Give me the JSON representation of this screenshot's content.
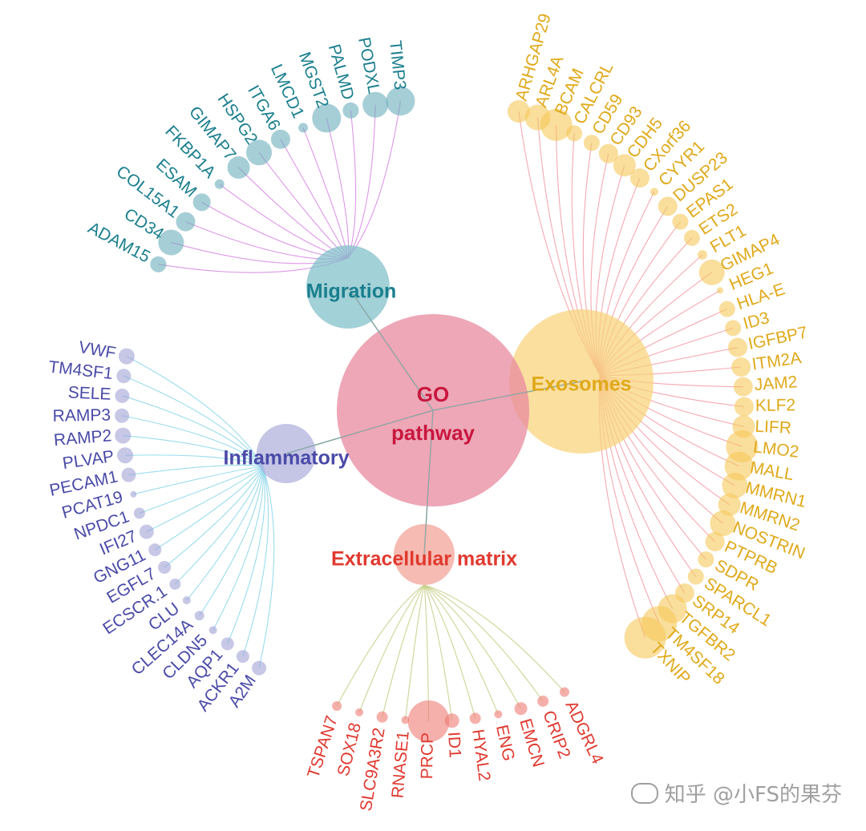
{
  "root": {
    "label_line1": "GO",
    "label_line2": "pathway",
    "color": "#e8899f",
    "text_color": "#c8173f"
  },
  "categories": [
    {
      "key": "migration",
      "label": "Migration",
      "color": "#7fbfc9",
      "text_color": "#1a7f8e",
      "leaf_color": "#6aaeba",
      "line_color": "#d98be6",
      "genes": [
        "ADAM15",
        "CD34",
        "COL15A1",
        "ESAM",
        "FKBP1A",
        "GIMAP7",
        "HSPG2",
        "ITGA6",
        "LMCD1",
        "MGST2",
        "PALMD",
        "PODXL",
        "TIMP3"
      ]
    },
    {
      "key": "exosomes",
      "label": "Exosomes",
      "color": "#f8d27a",
      "text_color": "#e0a91a",
      "leaf_color": "#f5c85a",
      "line_color": "#f4a0a8",
      "genes": [
        "ARHGAP29",
        "ARL4A",
        "BCAM",
        "CALCRL",
        "CD59",
        "CD93",
        "CDH5",
        "CXorf36",
        "CYYR1",
        "DUSP23",
        "EPAS1",
        "ETS2",
        "FLT1",
        "GIMAP4",
        "HEG1",
        "HLA-E",
        "ID3",
        "IGFBP7",
        "ITM2A",
        "JAM2",
        "KLF2",
        "LIFR",
        "LMO2",
        "MALL",
        "MMRN1",
        "MMRN2",
        "NOSTRIN",
        "PTPRB",
        "SDPR",
        "SPARCL1",
        "SRP14",
        "TGFBR2",
        "TM4SF18",
        "TXNIP"
      ]
    },
    {
      "key": "extracellular",
      "label": "Extracellular matrix",
      "color": "#f2a196",
      "text_color": "#e0392f",
      "leaf_color": "#ee7b74",
      "line_color": "#c9cf8a",
      "genes": [
        "TSPAN7",
        "SOX18",
        "SLC9A3R2",
        "RNASE1",
        "PRCP",
        "ID1",
        "HYAL2",
        "ENG",
        "EMCN",
        "CRIP2",
        "ADGRL4"
      ]
    },
    {
      "key": "inflammatory",
      "label": "Inflammatory",
      "color": "#aeaedd",
      "text_color": "#4a4aa8",
      "leaf_color": "#a2a2d6",
      "line_color": "#8fd8ea",
      "genes": [
        "VWF",
        "TM4SF1",
        "SELE",
        "RAMP3",
        "RAMP2",
        "PLVAP",
        "PECAM1",
        "PCAT19",
        "NPDC1",
        "IFI27",
        "GNG11",
        "EGFL7",
        "ECSCR.1",
        "CLU",
        "CLEC14A",
        "CLDN5",
        "AQP1",
        "ACKR1",
        "A2M"
      ]
    }
  ],
  "watermark": "知乎 @小FS的果芬"
}
